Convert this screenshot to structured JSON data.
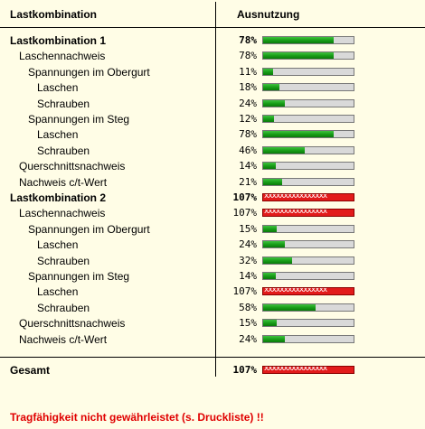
{
  "header": {
    "col1": "Lastkombination",
    "col2": "Ausnutzung"
  },
  "rows": [
    {
      "label": "Lastkombination 1",
      "value": "78%",
      "fraction": 0.78,
      "indent": 0,
      "bold": true,
      "over": false
    },
    {
      "label": "Laschennachweis",
      "value": "78%",
      "fraction": 0.78,
      "indent": 1,
      "bold": false,
      "over": false
    },
    {
      "label": "Spannungen im Obergurt",
      "value": "11%",
      "fraction": 0.11,
      "indent": 2,
      "bold": false,
      "over": false
    },
    {
      "label": "Laschen",
      "value": "18%",
      "fraction": 0.18,
      "indent": 3,
      "bold": false,
      "over": false
    },
    {
      "label": "Schrauben",
      "value": "24%",
      "fraction": 0.24,
      "indent": 3,
      "bold": false,
      "over": false
    },
    {
      "label": "Spannungen im Steg",
      "value": "12%",
      "fraction": 0.12,
      "indent": 2,
      "bold": false,
      "over": false
    },
    {
      "label": "Laschen",
      "value": "78%",
      "fraction": 0.78,
      "indent": 3,
      "bold": false,
      "over": false
    },
    {
      "label": "Schrauben",
      "value": "46%",
      "fraction": 0.46,
      "indent": 3,
      "bold": false,
      "over": false
    },
    {
      "label": "Querschnittsnachweis",
      "value": "14%",
      "fraction": 0.14,
      "indent": 1,
      "bold": false,
      "over": false
    },
    {
      "label": "Nachweis c/t-Wert",
      "value": "21%",
      "fraction": 0.21,
      "indent": 1,
      "bold": false,
      "over": false
    },
    {
      "label": "Lastkombination 2",
      "value": "107%",
      "fraction": 1.07,
      "indent": 0,
      "bold": true,
      "over": true
    },
    {
      "label": "Laschennachweis",
      "value": "107%",
      "fraction": 1.07,
      "indent": 1,
      "bold": false,
      "over": true
    },
    {
      "label": "Spannungen im Obergurt",
      "value": "15%",
      "fraction": 0.15,
      "indent": 2,
      "bold": false,
      "over": false
    },
    {
      "label": "Laschen",
      "value": "24%",
      "fraction": 0.24,
      "indent": 3,
      "bold": false,
      "over": false
    },
    {
      "label": "Schrauben",
      "value": "32%",
      "fraction": 0.32,
      "indent": 3,
      "bold": false,
      "over": false
    },
    {
      "label": "Spannungen im Steg",
      "value": "14%",
      "fraction": 0.14,
      "indent": 2,
      "bold": false,
      "over": false
    },
    {
      "label": "Laschen",
      "value": "107%",
      "fraction": 1.07,
      "indent": 3,
      "bold": false,
      "over": true
    },
    {
      "label": "Schrauben",
      "value": "58%",
      "fraction": 0.58,
      "indent": 3,
      "bold": false,
      "over": false
    },
    {
      "label": "Querschnittsnachweis",
      "value": "15%",
      "fraction": 0.15,
      "indent": 1,
      "bold": false,
      "over": false
    },
    {
      "label": "Nachweis c/t-Wert",
      "value": "24%",
      "fraction": 0.24,
      "indent": 1,
      "bold": false,
      "over": false
    }
  ],
  "total": {
    "label": "Gesamt",
    "value": "107%",
    "fraction": 1.07,
    "over": true
  },
  "overflow_marks": "xxxxxxxxxxxxxxxx",
  "warning": "Tragfähigkeit nicht gewährleistet (s. Druckliste) !!",
  "colors": {
    "background": "#fffde6",
    "bar_ok": "#169b16",
    "bar_over": "#e21b1b",
    "bar_empty": "#d9d9d9",
    "warning": "#e00000"
  }
}
